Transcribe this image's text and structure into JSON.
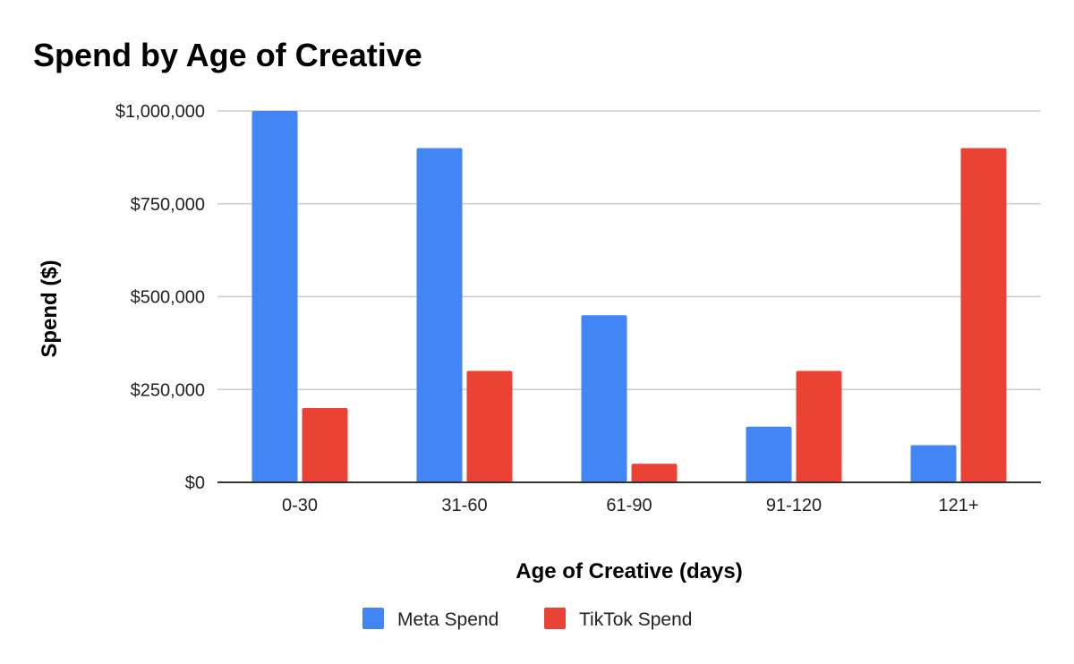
{
  "chart_data": {
    "type": "bar",
    "title": "Spend by Age of Creative",
    "xlabel": "Age of Creative (days)",
    "ylabel": "Spend ($)",
    "categories": [
      "0-30",
      "31-60",
      "61-90",
      "91-120",
      "121+"
    ],
    "series": [
      {
        "name": "Meta Spend",
        "color": "#4285F4",
        "values": [
          1000000,
          900000,
          450000,
          150000,
          100000
        ]
      },
      {
        "name": "TikTok Spend",
        "color": "#EA4335",
        "values": [
          200000,
          300000,
          50000,
          300000,
          900000
        ]
      }
    ],
    "ylim": [
      0,
      1000000
    ],
    "yticks": [
      0,
      250000,
      500000,
      750000,
      1000000
    ],
    "ytick_labels": [
      "$0",
      "$250,000",
      "$500,000",
      "$750,000",
      "$1,000,000"
    ],
    "grid": true,
    "legend_position": "bottom-center"
  }
}
